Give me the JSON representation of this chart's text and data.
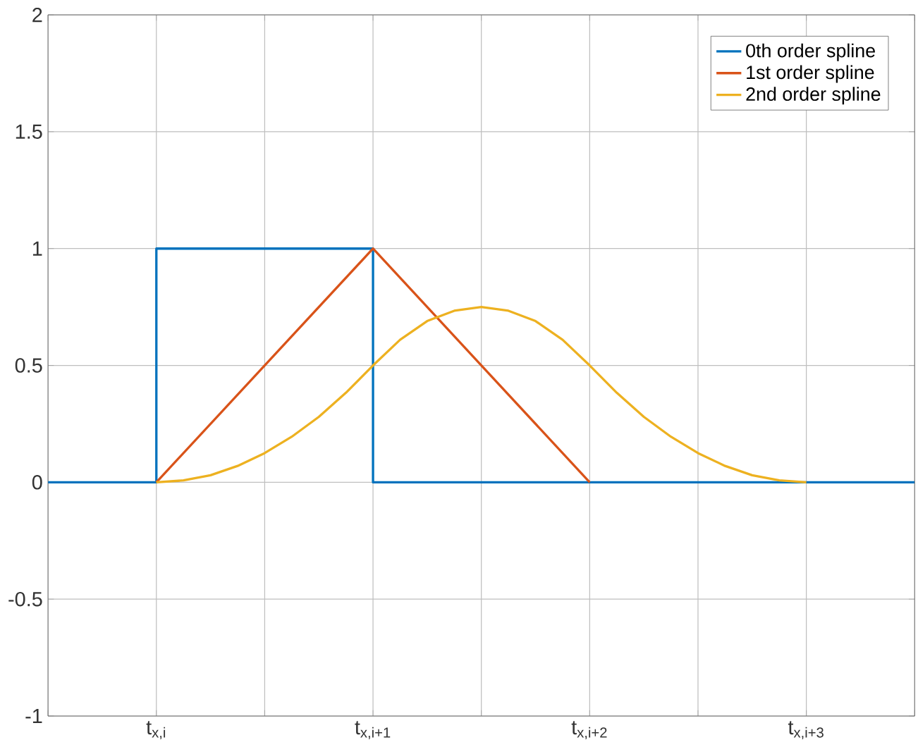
{
  "chart_data": {
    "type": "line",
    "ylim": [
      -1,
      2
    ],
    "categories": [
      null,
      null,
      null,
      null,
      "t$_{x,i}$",
      null,
      null,
      null,
      null,
      null,
      null,
      null,
      "t$_{x,i+1}$",
      null,
      null,
      null,
      null,
      null,
      null,
      null,
      "t$_{x,i+2}$",
      null,
      null,
      null,
      null,
      null,
      null,
      null,
      "t$_{x,i+3}$",
      null,
      null,
      null,
      null
    ],
    "yticks": [
      -1,
      -0.5,
      0,
      0.5,
      1,
      1.5,
      2
    ],
    "grid": true,
    "legend": "top right",
    "line_style": "solid",
    "marker": "none",
    "series": [
      {
        "name": "0th order spline",
        "color": "#0072bd",
        "type": "step",
        "values": [
          0,
          0,
          0,
          0,
          1,
          1,
          1,
          1,
          1,
          1,
          1,
          1,
          0,
          0,
          0,
          0,
          0,
          0,
          0,
          0,
          0,
          0,
          0,
          0,
          0,
          0,
          0,
          0,
          0,
          0,
          0,
          0,
          0
        ]
      },
      {
        "name": "1st order spline",
        "color": "#d95319",
        "values": [
          null,
          null,
          null,
          null,
          0,
          0.125,
          0.25,
          0.375,
          0.5,
          0.625,
          0.75,
          0.875,
          1,
          0.875,
          0.75,
          0.625,
          0.5,
          0.375,
          0.25,
          0.125,
          0,
          null,
          null,
          null,
          null,
          null,
          null,
          null,
          null,
          null,
          null,
          null,
          null
        ]
      },
      {
        "name": "2nd order spline",
        "color": "#edb120",
        "values": [
          null,
          null,
          null,
          null,
          0,
          0.008,
          0.03,
          0.07,
          0.125,
          0.195,
          0.28,
          0.383,
          0.5,
          0.61,
          0.69,
          0.734,
          0.75,
          0.734,
          0.69,
          0.61,
          0.5,
          0.383,
          0.28,
          0.195,
          0.125,
          0.07,
          0.03,
          0.008,
          0,
          null,
          null,
          null,
          null
        ]
      }
    ]
  }
}
